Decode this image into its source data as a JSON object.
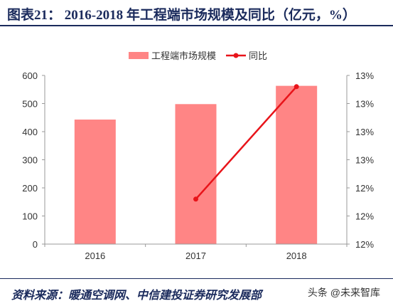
{
  "title": "图表21： 2016-2018 年工程端市场规模及同比（亿元，%）",
  "source": "资料来源：暖通空调网、中信建投证券研究发展部",
  "watermark": "头条 @未来智库",
  "colors": {
    "bar": "#ff8585",
    "line": "#e8141a",
    "title": "#1a2a5c",
    "axis": "#999999"
  },
  "chart_data": {
    "type": "bar+line",
    "categories": [
      "2016",
      "2017",
      "2018"
    ],
    "series": [
      {
        "name": "工程端市场规模",
        "type": "bar",
        "axis": "left",
        "values": [
          443,
          498,
          563
        ]
      },
      {
        "name": "同比",
        "type": "line",
        "axis": "right",
        "values": [
          null,
          12.4,
          13.4
        ]
      }
    ],
    "y_left": {
      "min": 0,
      "max": 600,
      "ticks": [
        "0",
        "100",
        "200",
        "300",
        "400",
        "500",
        "600"
      ]
    },
    "y_right": {
      "min": 12.0,
      "max": 13.5,
      "ticks": [
        "12%",
        "12%",
        "12%",
        "13%",
        "13%",
        "13%",
        "13%"
      ]
    },
    "legend_position": "top",
    "grid": false
  }
}
